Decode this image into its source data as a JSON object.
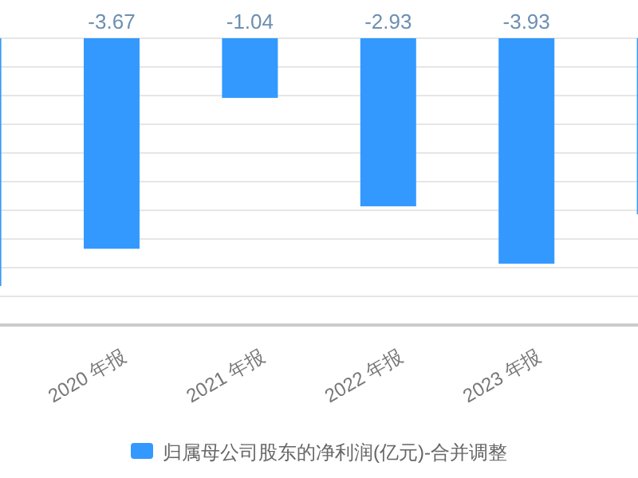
{
  "chart_data": {
    "type": "bar",
    "categories": [
      null,
      "2020 年报",
      "2021 年报",
      "2022 年报",
      "2023 年报",
      null
    ],
    "series": [
      {
        "name": "归属母公司股东的净利润(亿元)-合并调整",
        "color": "#3399ff",
        "values": [
          -4.32,
          -3.67,
          -1.04,
          -2.93,
          -3.93,
          -3.07
        ],
        "value_labels": [
          null,
          "-3.67",
          "-1.04",
          "-2.93",
          "-3.93",
          null
        ]
      }
    ],
    "ylim": [
      -5,
      0
    ],
    "yticks": [
      {
        "value": 0,
        "label": null
      },
      {
        "value": -0.5,
        "label": null
      },
      {
        "value": -1,
        "label": null
      },
      {
        "value": -1.5,
        "label": null
      },
      {
        "value": -2,
        "label": null
      },
      {
        "value": -2.5,
        "label": null
      },
      {
        "value": -3,
        "label": null
      },
      {
        "value": -3.5,
        "label": null
      },
      {
        "value": -4,
        "label": null
      },
      {
        "value": -4.5,
        "label": null
      },
      {
        "value": -5,
        "label": null
      }
    ],
    "grid": "y",
    "tick_labels": "x",
    "legend": "bottom"
  }
}
